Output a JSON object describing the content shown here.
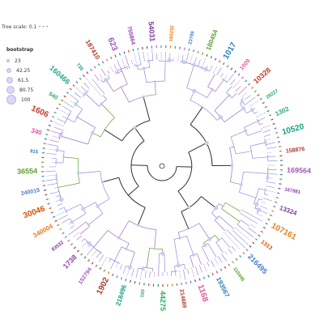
{
  "tree_scale": {
    "label": "Tree scale: 0.1",
    "marker": "•••"
  },
  "legend": {
    "title": "bootstrap",
    "entries": [
      "23",
      "42.25",
      "61.5",
      "80.75",
      "100"
    ]
  },
  "tip_labels": [
    "23799",
    "180454",
    "1017",
    "1009",
    "10328",
    "28227",
    "1302",
    "10520",
    "158876",
    "169564",
    "167881",
    "13324",
    "107161",
    "1313",
    "216495",
    "110446",
    "193567",
    "1168",
    "214689",
    "44275",
    "160",
    "218496",
    "1902",
    "152794",
    "1738",
    "83532",
    "340004",
    "30046",
    "240015",
    "36554",
    "915",
    "340",
    "1606",
    "540",
    "160466",
    "730",
    "187410",
    "623",
    "755864",
    "54031",
    "160232"
  ],
  "colors": {
    "branch_blue": "#8a8fd8",
    "branch_purple": "#a070c0",
    "branch_green": "#5aa02c",
    "branch_dark": "#333333",
    "node_fill": "#cfcff0"
  }
}
